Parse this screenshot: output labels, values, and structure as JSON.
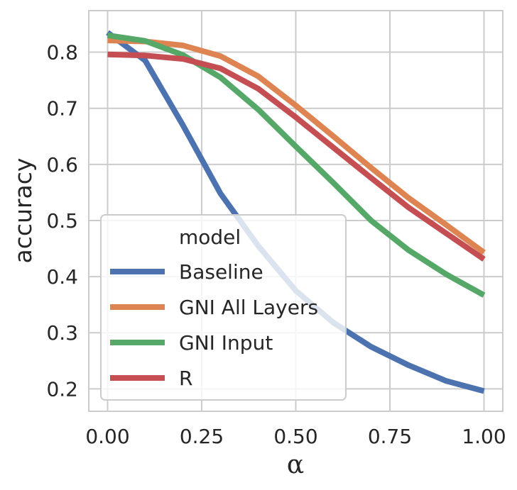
{
  "chart_data": {
    "type": "line",
    "title": "",
    "xlabel": "α",
    "ylabel": "accuracy",
    "xlim": [
      -0.05,
      1.05
    ],
    "ylim": [
      0.16,
      0.874
    ],
    "xticks": [
      "0.00",
      "0.25",
      "0.50",
      "0.75",
      "1.00"
    ],
    "yticks": [
      "0.2",
      "0.3",
      "0.4",
      "0.5",
      "0.6",
      "0.7",
      "0.8"
    ],
    "grid": true,
    "legend": {
      "title": "model",
      "placement": "lower-left"
    },
    "x": [
      0.0,
      0.1,
      0.2,
      0.3,
      0.4,
      0.5,
      0.6,
      0.7,
      0.8,
      0.9,
      1.0
    ],
    "series": [
      {
        "name": "Baseline",
        "color": "#4c72b0",
        "values": [
          0.835,
          0.785,
          0.67,
          0.548,
          0.455,
          0.375,
          0.318,
          0.275,
          0.242,
          0.214,
          0.196
        ]
      },
      {
        "name": "GNI All Layers",
        "color": "#dd8452",
        "values": [
          0.821,
          0.819,
          0.812,
          0.793,
          0.757,
          0.705,
          0.65,
          0.594,
          0.54,
          0.492,
          0.443
        ]
      },
      {
        "name": "GNI Input",
        "color": "#55a868",
        "values": [
          0.83,
          0.82,
          0.795,
          0.755,
          0.698,
          0.632,
          0.567,
          0.5,
          0.447,
          0.404,
          0.367
        ]
      },
      {
        "name": "R",
        "color": "#c44e52",
        "values": [
          0.796,
          0.794,
          0.788,
          0.771,
          0.735,
          0.684,
          0.63,
          0.576,
          0.523,
          0.477,
          0.431
        ]
      }
    ]
  }
}
